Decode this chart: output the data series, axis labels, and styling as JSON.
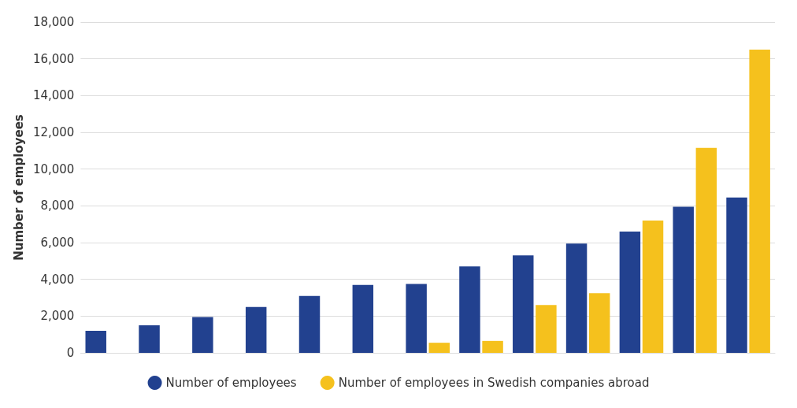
{
  "chart_data": {
    "type": "bar",
    "ylabel": "Number of employees",
    "categories": [
      null,
      null,
      null,
      null,
      null,
      null,
      null,
      null,
      null,
      null,
      null,
      null,
      null
    ],
    "series": [
      {
        "name": "Number of employees",
        "color": "#22418f",
        "values": [
          1200,
          1500,
          1950,
          2500,
          3100,
          3700,
          3750,
          4700,
          5300,
          5950,
          6600,
          7950,
          8450
        ]
      },
      {
        "name": "Number of employees in Swedish companies abroad",
        "color": "#f5c11d",
        "values": [
          null,
          null,
          null,
          null,
          null,
          null,
          550,
          650,
          2600,
          3250,
          7200,
          11150,
          16500
        ]
      }
    ],
    "ylim": [
      0,
      18000
    ],
    "yticks": [
      0,
      {
        "value": 2000,
        "label": "2,000"
      },
      {
        "value": 4000,
        "label": "4,000"
      },
      {
        "value": 6000,
        "label": "6,000"
      },
      {
        "value": 8000,
        "label": "8,000"
      },
      {
        "value": 10000,
        "label": "10,000"
      },
      {
        "value": 12000,
        "label": "12,000"
      },
      {
        "value": 14000,
        "label": "14,000"
      },
      {
        "value": 16000,
        "label": "16,000"
      },
      {
        "value": 18000,
        "label": "18,000"
      }
    ],
    "grid": "y",
    "legend": "bottom",
    "tick_labels": "y"
  }
}
